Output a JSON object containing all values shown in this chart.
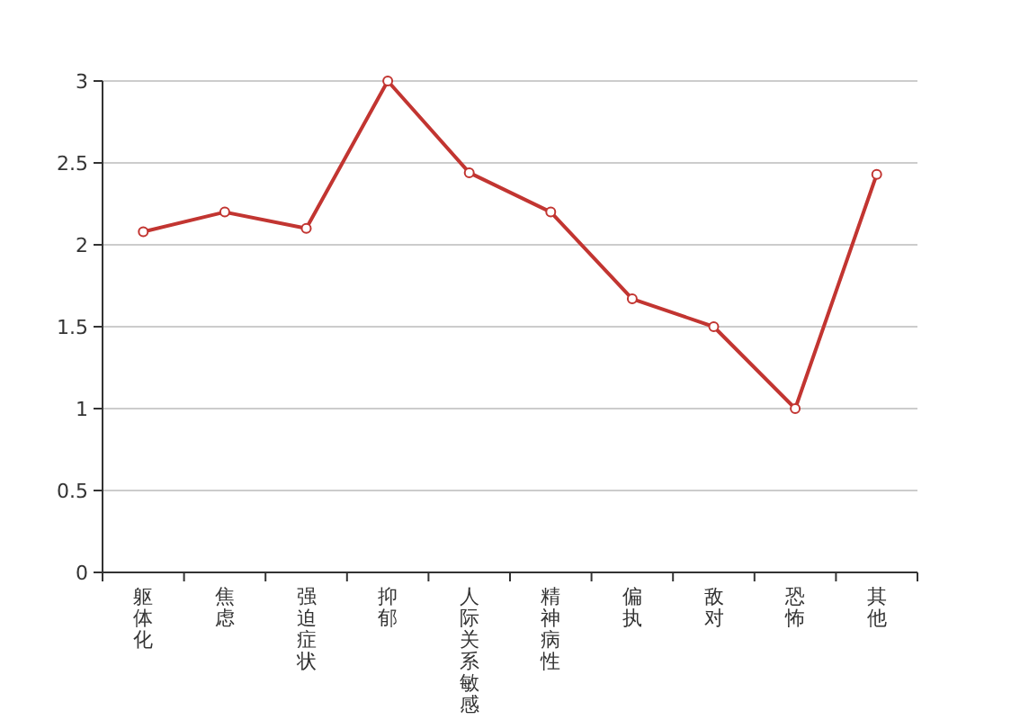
{
  "chart_data": {
    "type": "line",
    "categories": [
      "躯体化",
      "焦虑",
      "强迫症状",
      "抑郁",
      "人际关系敏感",
      "精神病性",
      "偏执",
      "敌对",
      "恐怖",
      "其他"
    ],
    "values": [
      2.08,
      2.2,
      2.1,
      3.0,
      2.44,
      2.2,
      1.67,
      1.5,
      1.0,
      2.43
    ],
    "color": "#c23531",
    "ylim": [
      0,
      3
    ],
    "yticks": [
      0,
      0.5,
      1,
      1.5,
      2,
      2.5,
      3
    ],
    "grid": "y",
    "marker": "circle",
    "line_style": "solid"
  }
}
